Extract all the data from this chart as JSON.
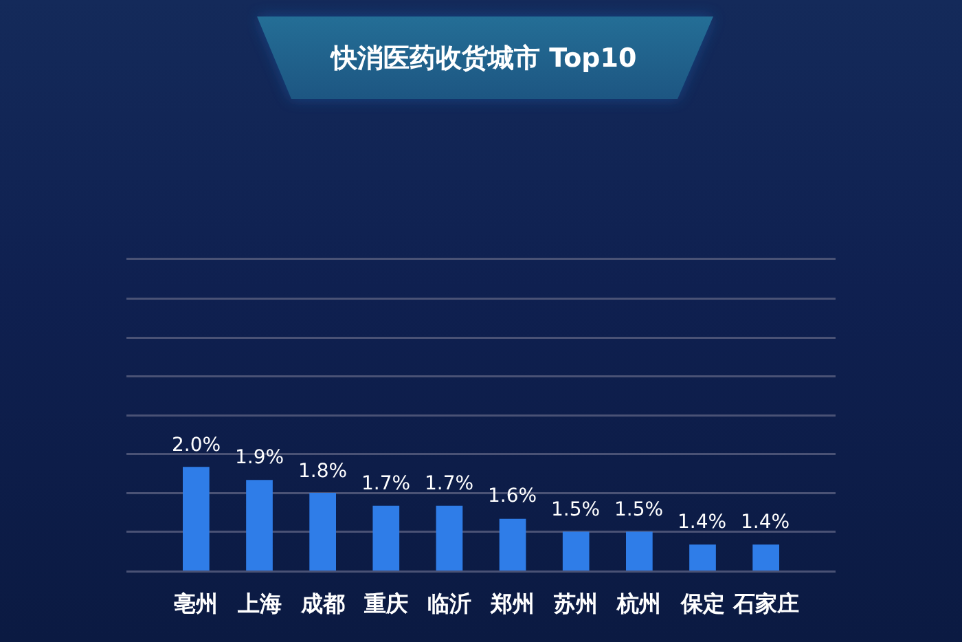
{
  "chart_data": {
    "type": "bar",
    "title": "快消医药收货城市 Top10",
    "categories": [
      "亳州",
      "上海",
      "成都",
      "重庆",
      "临沂",
      "郑州",
      "苏州",
      "杭州",
      "保定",
      "石家庄"
    ],
    "values": [
      2.0,
      1.9,
      1.8,
      1.7,
      1.7,
      1.6,
      1.5,
      1.5,
      1.4,
      1.4
    ],
    "value_labels": [
      "2.0%",
      "1.9%",
      "1.8%",
      "1.7%",
      "1.7%",
      "1.6%",
      "1.5%",
      "1.5%",
      "1.4%",
      "1.4%"
    ],
    "color": "#2f7de8",
    "ylim": [
      1.2,
      3.6
    ],
    "yticks": [
      {
        "value": 1.2,
        "label": null
      },
      {
        "value": 1.5,
        "label": null
      },
      {
        "value": 1.8,
        "label": null
      },
      {
        "value": 2.1,
        "label": null
      },
      {
        "value": 2.4,
        "label": null
      },
      {
        "value": 2.7,
        "label": null
      },
      {
        "value": 3.0,
        "label": null
      },
      {
        "value": 3.3,
        "label": null
      },
      {
        "value": 3.6,
        "label": null
      }
    ],
    "grid": "y",
    "tick_labels": "x"
  }
}
